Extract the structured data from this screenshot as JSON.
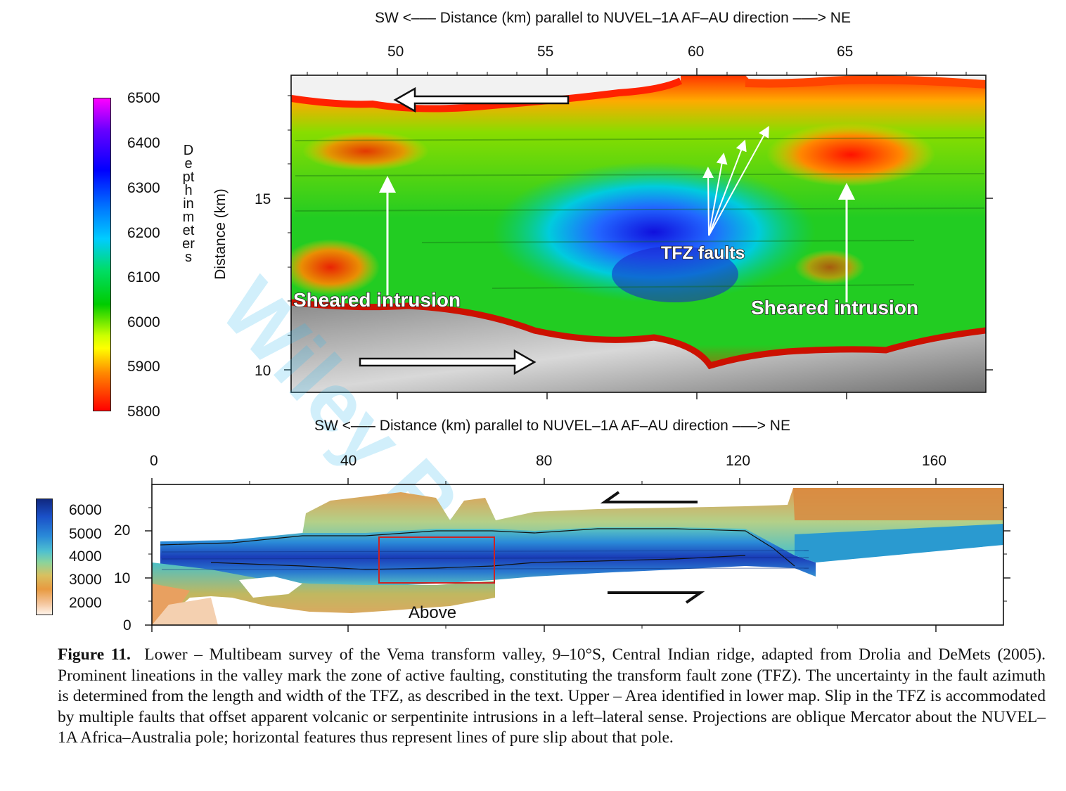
{
  "figure": {
    "label": "Figure 11.",
    "caption": "Lower – Multibeam survey of the Vema transform valley, 9–10°S, Central Indian ridge, adapted from Drolia and DeMets (2005).  Prominent lineations in the valley mark the zone of active faulting, constituting the transform fault zone (TFZ).  The uncertainty in the fault azimuth is determined from the length and width of the TFZ, as described in the text.  Upper – Area identified in lower map.  Slip in the TFZ is accommodated by multiple faults that offset apparent volcanic or serpentinite intrusions in a left–lateral sense.  Projections are oblique Mercator about the NUVEL–1A Africa–Australia pole; horizontal features thus represent lines of pure slip about that pole."
  },
  "upper_map": {
    "xlabel": "SW <––– Distance (km) parallel to NUVEL–1A AF–AU direction –––> NE",
    "ylabel": "Distance (km)",
    "xticks": [
      "50",
      "55",
      "60",
      "65"
    ],
    "yticks": [
      "15",
      "10"
    ],
    "colorbar_label": "Depth in meters",
    "colorbar_ticks": [
      "6500",
      "6400",
      "6300",
      "6200",
      "6100",
      "6000",
      "5900",
      "5800"
    ],
    "annotations": {
      "left": "Sheared intrusion",
      "right": "Sheared intrusion",
      "faults": "TFZ faults"
    }
  },
  "lower_map": {
    "xlabel": "SW <––– Distance (km) parallel to NUVEL–1A AF–AU direction –––> NE",
    "xticks": [
      "0",
      "40",
      "80",
      "120",
      "160"
    ],
    "yticks": [
      "20",
      "10",
      "0"
    ],
    "colorbar_ticks": [
      "6000",
      "5000",
      "4000",
      "3000",
      "2000"
    ],
    "box_label": "Above"
  },
  "watermark": "Wiley Re",
  "colors": {
    "upper_scale": [
      "#ff00ff",
      "#0000ff",
      "#00ccff",
      "#00cc00",
      "#ffff00",
      "#ff0000"
    ],
    "lower_scale": [
      "#1030b0",
      "#2a8ad8",
      "#7ad0a0",
      "#e0a040",
      "#fff0e0"
    ]
  }
}
